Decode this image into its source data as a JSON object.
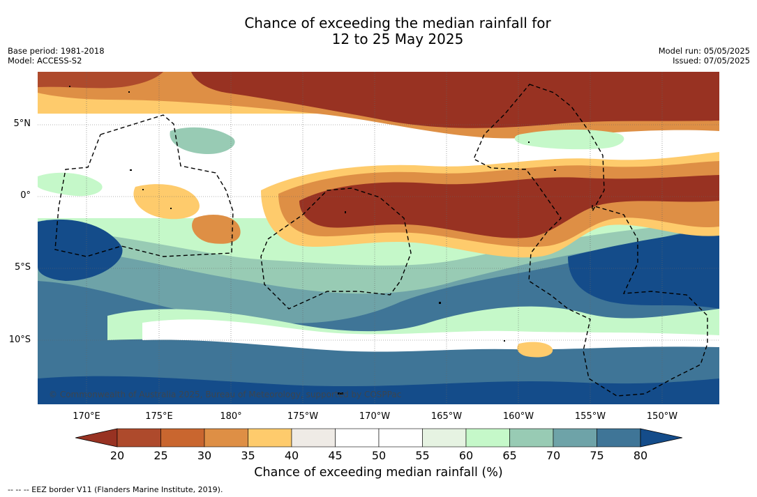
{
  "header": {
    "title_line1": "Chance of exceeding the median rainfall for",
    "title_line2": "12 to 25 May 2025",
    "base_period": "Base period: 1981-2018",
    "model": "Model: ACCESS-S2",
    "model_run": "Model run: 05/05/2025",
    "issued": "Issued: 07/05/2025"
  },
  "map": {
    "lat_labels": [
      "5°N",
      "0°",
      "5°S",
      "10°S"
    ],
    "lon_labels": [
      "170°E",
      "175°E",
      "180°",
      "175°W",
      "170°W",
      "165°W",
      "160°W",
      "155°W",
      "150°W"
    ],
    "copyright": "© Commonwealth of Australia 2025, Bureau of Meteorology, supported by COSPPac"
  },
  "colorbar": {
    "title": "Chance of exceeding median rainfall (%)",
    "ticks": [
      "20",
      "25",
      "30",
      "35",
      "40",
      "45",
      "50",
      "55",
      "60",
      "65",
      "70",
      "75",
      "80"
    ],
    "colors": [
      "#983222",
      "#ae4a2c",
      "#c9662f",
      "#de8f45",
      "#fecb6c",
      "#efebe6",
      "#ffffff",
      "#ffffff",
      "#e6f3e2",
      "#c5f8c9",
      "#98cbb4",
      "#6ea3a8",
      "#3f7597",
      "#144c8a"
    ]
  },
  "footer": {
    "eez_note": "--  --  -- EEZ border V11 (Flanders Marine Institute, 2019)."
  }
}
